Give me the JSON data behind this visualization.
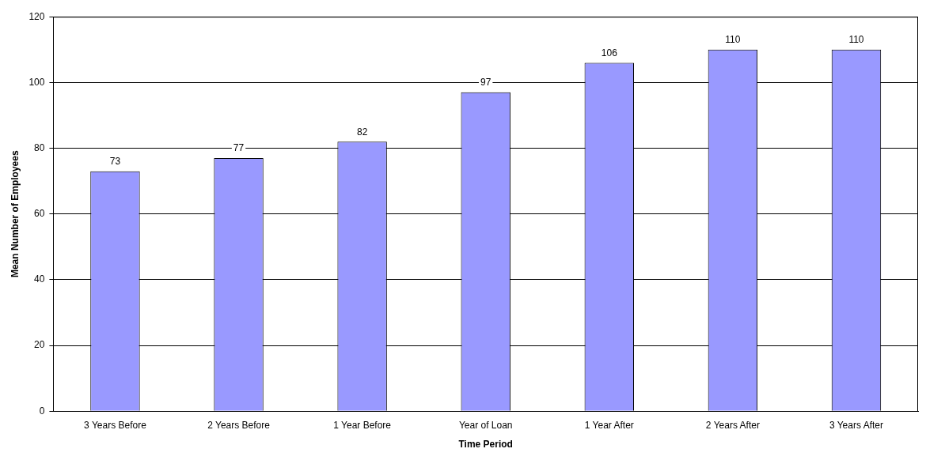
{
  "chart_data": {
    "type": "bar",
    "xlabel": "Time Period",
    "ylabel": "Mean Number of Employees",
    "categories": [
      "3 Years Before",
      "2 Years Before",
      "1 Year Before",
      "Year of Loan",
      "1 Year After",
      "2 Years After",
      "3 Years After"
    ],
    "values": [
      73,
      77,
      82,
      97,
      106,
      110,
      110
    ],
    "color": "#9999ff",
    "ylim": [
      0,
      120
    ],
    "yticks": [
      0,
      20,
      40,
      60,
      80,
      100,
      120
    ],
    "grid": "y",
    "data_labels": true
  }
}
